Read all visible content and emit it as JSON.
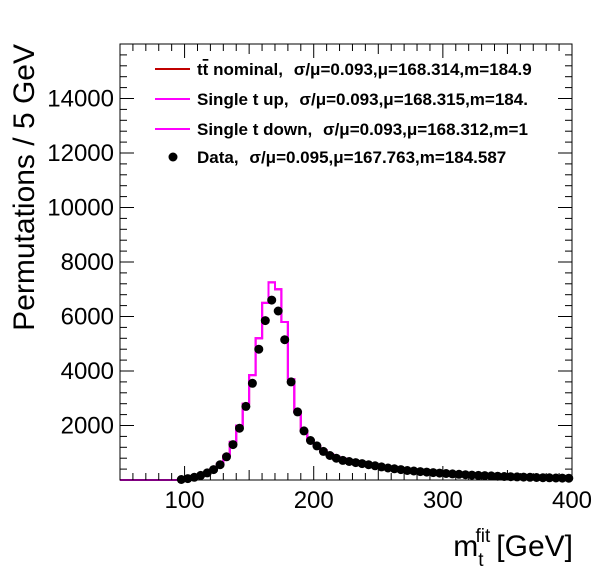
{
  "chart_data": {
    "type": "line",
    "xlabel": "m",
    "xlabel_sup": "fit",
    "xlabel_sub": "t",
    "xlabel_unit": "[GeV]",
    "ylabel": "Permutations / 5 GeV",
    "xlim": [
      50,
      400
    ],
    "ylim": [
      0,
      16000
    ],
    "x_ticks": [
      100,
      200,
      300,
      400
    ],
    "y_ticks": [
      2000,
      4000,
      6000,
      8000,
      10000,
      12000,
      14000
    ],
    "grid": false,
    "legend_position": "top",
    "bin_edges": [
      50,
      55,
      60,
      65,
      70,
      75,
      80,
      85,
      90,
      95,
      100,
      105,
      110,
      115,
      120,
      125,
      130,
      135,
      140,
      145,
      150,
      155,
      160,
      165,
      170,
      175,
      180,
      185,
      190,
      195,
      200,
      205,
      210,
      215,
      220,
      225,
      230,
      235,
      240,
      245,
      250,
      255,
      260,
      265,
      270,
      275,
      280,
      285,
      290,
      295,
      300,
      305,
      310,
      315,
      320,
      325,
      330,
      335,
      340,
      345,
      350,
      355,
      360,
      365,
      370,
      375,
      380,
      385,
      390,
      395,
      400
    ],
    "series": [
      {
        "name": "tt̄ nominal,",
        "label_head": "t",
        "label_bar": "t",
        "label_tail": " nominal,",
        "stats": "σ/μ=0.093,μ=168.314,m=184.9",
        "style": "histogram",
        "color": "#c00000",
        "values": [
          0,
          0,
          0,
          0,
          0,
          0,
          0,
          0,
          0,
          20,
          50,
          100,
          170,
          270,
          400,
          600,
          900,
          1400,
          2000,
          2800,
          3850,
          5200,
          6500,
          7250,
          7000,
          5800,
          3700,
          2500,
          1800,
          1450,
          1250,
          1100,
          950,
          850,
          780,
          720,
          670,
          620,
          570,
          530,
          490,
          450,
          420,
          390,
          360,
          330,
          310,
          290,
          270,
          250,
          235,
          220,
          205,
          190,
          180,
          170,
          160,
          150,
          140,
          130,
          120,
          110,
          105,
          100,
          95,
          90,
          85,
          80,
          75,
          70
        ]
      },
      {
        "name": "Single t up,",
        "stats": "σ/μ=0.093,μ=168.315,m=184.",
        "style": "histogram",
        "color": "#ff00ff",
        "values": [
          0,
          0,
          0,
          0,
          0,
          0,
          0,
          0,
          0,
          20,
          50,
          100,
          170,
          270,
          400,
          600,
          900,
          1400,
          2000,
          2800,
          3850,
          5200,
          6500,
          7250,
          7000,
          5800,
          3700,
          2500,
          1800,
          1450,
          1250,
          1100,
          950,
          850,
          780,
          720,
          670,
          620,
          570,
          530,
          490,
          450,
          420,
          390,
          360,
          330,
          310,
          290,
          270,
          250,
          235,
          220,
          205,
          190,
          180,
          170,
          160,
          150,
          140,
          130,
          120,
          110,
          105,
          100,
          95,
          90,
          85,
          80,
          75,
          70
        ]
      },
      {
        "name": "Single t down,",
        "stats": "σ/μ=0.093,μ=168.312,m=1",
        "style": "histogram",
        "color": "#ff00ff",
        "values": [
          0,
          0,
          0,
          0,
          0,
          0,
          0,
          0,
          0,
          20,
          50,
          100,
          170,
          270,
          400,
          600,
          900,
          1400,
          2000,
          2800,
          3850,
          5200,
          6500,
          7250,
          7000,
          5800,
          3700,
          2500,
          1800,
          1450,
          1250,
          1100,
          950,
          850,
          780,
          720,
          670,
          620,
          570,
          530,
          490,
          450,
          420,
          390,
          360,
          330,
          310,
          290,
          270,
          250,
          235,
          220,
          205,
          190,
          180,
          170,
          160,
          150,
          140,
          130,
          120,
          110,
          105,
          100,
          95,
          90,
          85,
          80,
          75,
          70
        ]
      },
      {
        "name": "Data,",
        "stats": "σ/μ=0.095,μ=167.763,m=184.587",
        "style": "markers",
        "color": "#000000",
        "x": [
          97.5,
          102.5,
          107.5,
          112.5,
          117.5,
          122.5,
          127.5,
          132.5,
          137.5,
          142.5,
          147.5,
          152.5,
          157.5,
          162.5,
          167.5,
          172.5,
          177.5,
          182.5,
          187.5,
          192.5,
          197.5,
          202.5,
          207.5,
          212.5,
          217.5,
          222.5,
          227.5,
          232.5,
          237.5,
          242.5,
          247.5,
          252.5,
          257.5,
          262.5,
          267.5,
          272.5,
          277.5,
          282.5,
          287.5,
          292.5,
          297.5,
          302.5,
          307.5,
          312.5,
          317.5,
          322.5,
          327.5,
          332.5,
          337.5,
          342.5,
          347.5,
          352.5,
          357.5,
          362.5,
          367.5,
          372.5,
          377.5,
          382.5,
          387.5,
          392.5,
          397.5
        ],
        "values": [
          20,
          50,
          100,
          170,
          260,
          380,
          560,
          850,
          1300,
          1900,
          2700,
          3550,
          4800,
          5850,
          6600,
          6200,
          5150,
          3600,
          2500,
          1800,
          1450,
          1250,
          1050,
          900,
          800,
          720,
          680,
          640,
          600,
          560,
          520,
          480,
          440,
          410,
          380,
          350,
          330,
          310,
          290,
          270,
          255,
          240,
          225,
          210,
          195,
          180,
          170,
          160,
          150,
          140,
          130,
          120,
          112,
          105,
          98,
          92,
          86,
          80,
          75,
          70,
          65
        ]
      }
    ]
  }
}
